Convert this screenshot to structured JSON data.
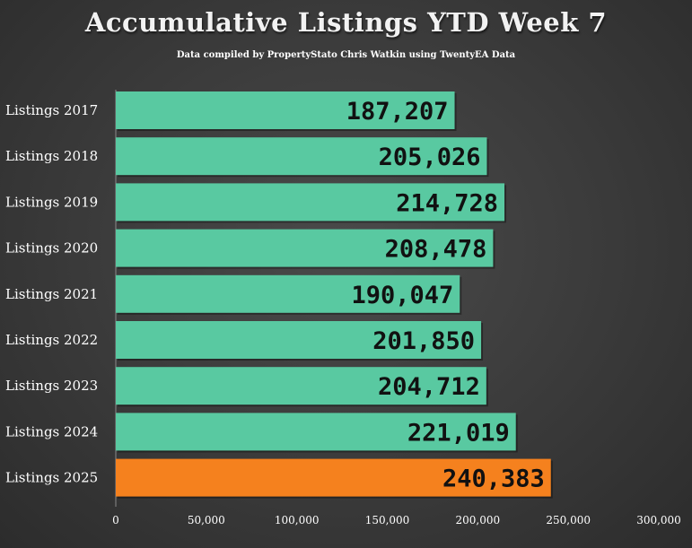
{
  "title": "Accumulative Listings YTD Week 7",
  "subtitle": "Data compiled by PropertyStato Chris Watkin using TwentyEA Data",
  "colors": {
    "bar": "#59c9a1",
    "highlight": "#f5811e",
    "label": "#111111",
    "text": "#ffffff"
  },
  "chart_data": {
    "type": "bar",
    "orientation": "horizontal",
    "title": "Accumulative Listings YTD Week 7",
    "subtitle": "Data compiled by PropertyStato Chris Watkin using TwentyEA Data",
    "categories": [
      "Listings 2017",
      "Listings 2018",
      "Listings 2019",
      "Listings 2020",
      "Listings 2021",
      "Listings 2022",
      "Listings 2023",
      "Listings 2024",
      "Listings 2025"
    ],
    "values": [
      187207,
      205026,
      214728,
      208478,
      190047,
      201850,
      204712,
      221019,
      240383
    ],
    "value_labels": [
      "187,207",
      "205,026",
      "214,728",
      "208,478",
      "190,047",
      "201,850",
      "204,712",
      "221,019",
      "240,383"
    ],
    "highlight_category": "Listings 2025",
    "xlim": [
      0,
      300000
    ],
    "xticks": [
      0,
      50000,
      100000,
      150000,
      200000,
      250000,
      300000
    ],
    "xtick_labels": [
      "0",
      "50,000",
      "100,000",
      "150,000",
      "200,000",
      "250,000",
      "300,000"
    ],
    "grid": false,
    "legend": "none"
  }
}
